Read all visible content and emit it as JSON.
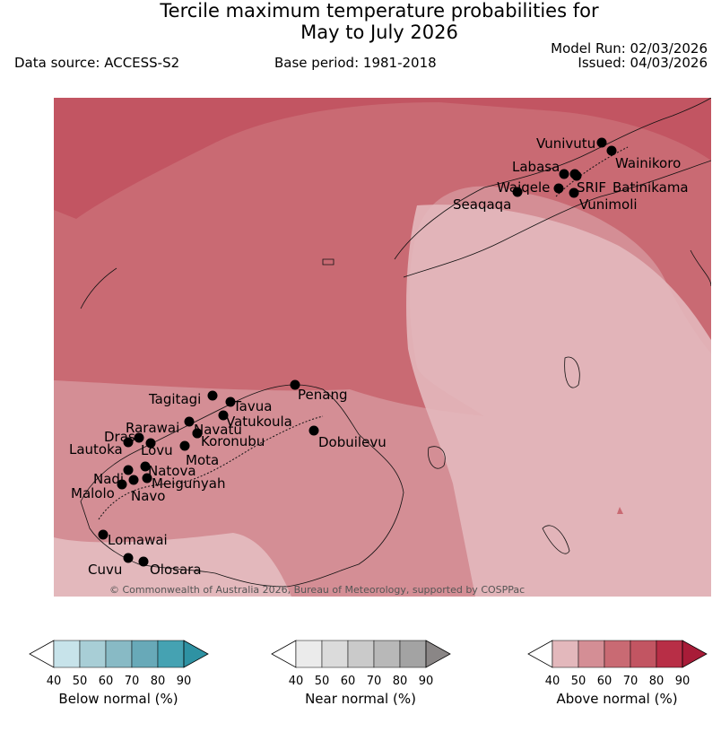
{
  "header": {
    "title_line1": "Tercile maximum temperature probabilities for",
    "title_line2": "May to July 2026",
    "data_source": "Data source: ACCESS-S2",
    "base_period": "Base period: 1981-2018",
    "model_run": "Model Run: 02/03/2026",
    "issued": "Issued: 04/03/2026"
  },
  "map": {
    "copyright": "© Commonwealth of Australia 2026, Bureau of Meteorology, supported by COSPPac",
    "stations": [
      {
        "name": "Vunivutu"
      },
      {
        "name": "Wainikoro"
      },
      {
        "name": "Labasa"
      },
      {
        "name": "Waiqele"
      },
      {
        "name": "SRIF"
      },
      {
        "name": "Batinikama"
      },
      {
        "name": "Seaqaqa"
      },
      {
        "name": "Vunimoli"
      },
      {
        "name": "Tagitagi"
      },
      {
        "name": "Tavua"
      },
      {
        "name": "Penang"
      },
      {
        "name": "Vatukoula"
      },
      {
        "name": "Rarawai"
      },
      {
        "name": "Navatu"
      },
      {
        "name": "Drasa"
      },
      {
        "name": "Koronubu"
      },
      {
        "name": "Dobuilevu"
      },
      {
        "name": "Lautoka"
      },
      {
        "name": "Lovu"
      },
      {
        "name": "Mota"
      },
      {
        "name": "Natova"
      },
      {
        "name": "Nadi"
      },
      {
        "name": "Meigunyah"
      },
      {
        "name": "Malolo"
      },
      {
        "name": "Navo"
      },
      {
        "name": "Lomawai"
      },
      {
        "name": "Cuvu"
      },
      {
        "name": "Olosara"
      }
    ]
  },
  "legends": [
    {
      "title": "Below normal (%)",
      "ticks": [
        "40",
        "50",
        "60",
        "70",
        "80",
        "90"
      ],
      "colors": [
        "#ffffff",
        "#c7e3ea",
        "#a8ced6",
        "#88bac5",
        "#68a9b8",
        "#45a2b2",
        "#2e92a3"
      ]
    },
    {
      "title": "Near normal (%)",
      "ticks": [
        "40",
        "50",
        "60",
        "70",
        "80",
        "90"
      ],
      "colors": [
        "#ffffff",
        "#ebebeb",
        "#dbdbdb",
        "#cacaca",
        "#b8b8b8",
        "#a3a3a3",
        "#8a8686"
      ]
    },
    {
      "title": "Above normal (%)",
      "ticks": [
        "40",
        "50",
        "60",
        "70",
        "80",
        "90"
      ],
      "colors": [
        "#ffffff",
        "#e3b8bc",
        "#d48e95",
        "#c96a73",
        "#c25562",
        "#b82e46",
        "#a81c38"
      ]
    }
  ]
}
